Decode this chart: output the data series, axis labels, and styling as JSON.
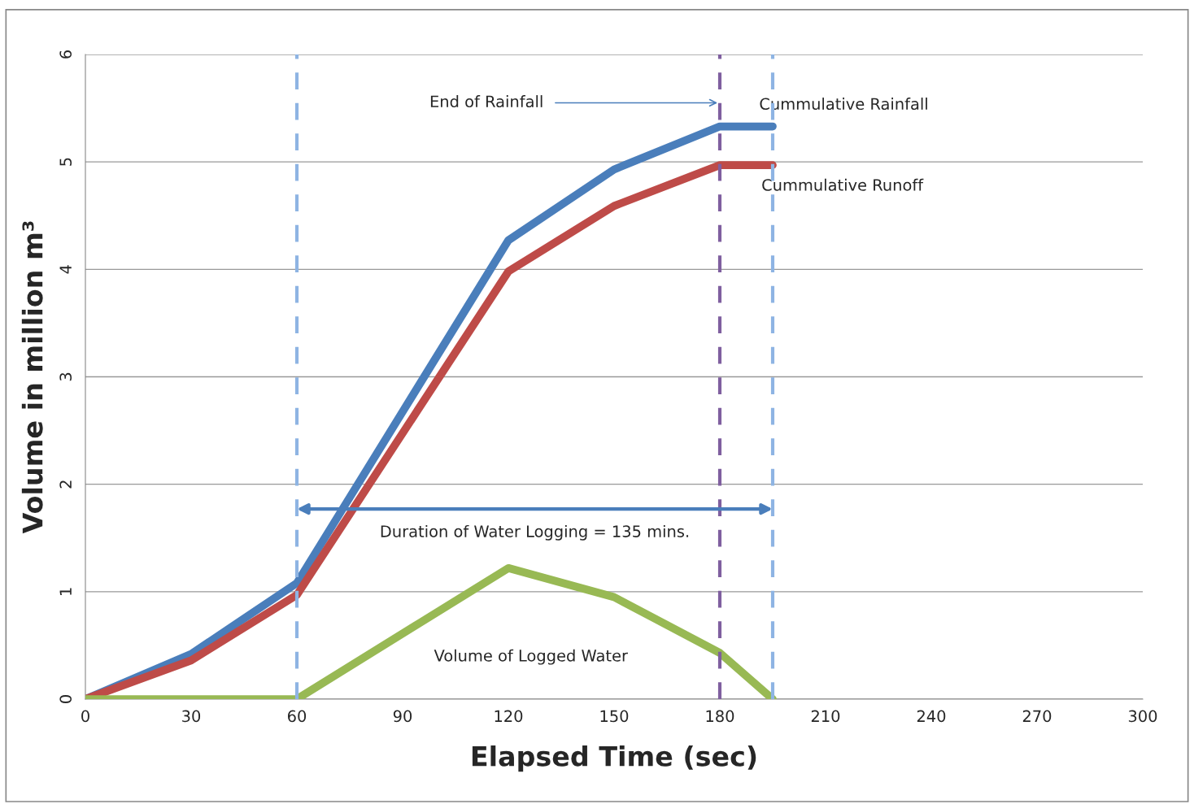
{
  "chart_data": {
    "type": "line",
    "xlabel": "Elapsed Time (sec)",
    "ylabel": "Volume in million m³",
    "xlim": [
      0,
      300
    ],
    "xticks": [
      0,
      30,
      60,
      90,
      120,
      150,
      180,
      210,
      240,
      270,
      300
    ],
    "ylim": [
      0,
      6
    ],
    "yticks": [
      0,
      1,
      2,
      3,
      4,
      5,
      6
    ],
    "grid": "y",
    "legend": false,
    "marker": "none",
    "line_style": "solid",
    "series": [
      {
        "name": "Cummulative Rainfall",
        "color": "#4a7ebb",
        "x": [
          0,
          30,
          60,
          120,
          150,
          180,
          195
        ],
        "values": [
          0,
          0.42,
          1.08,
          4.27,
          4.93,
          5.33,
          5.33
        ]
      },
      {
        "name": "Cummulative Runoff",
        "color": "#be4b48",
        "x": [
          0,
          30,
          60,
          120,
          150,
          180,
          195
        ],
        "values": [
          0,
          0.36,
          0.97,
          3.98,
          4.59,
          4.97,
          4.97
        ]
      },
      {
        "name": "Volume of Logged Water",
        "color": "#98b954",
        "x": [
          0,
          60,
          120,
          150,
          180,
          195
        ],
        "values": [
          0,
          0,
          1.22,
          0.95,
          0.43,
          0
        ]
      }
    ],
    "ref_lines": [
      {
        "axis": "x",
        "value": 60,
        "color": "#8eb4e3",
        "line_style": "dashed"
      },
      {
        "axis": "x",
        "value": 180,
        "color": "#7f5f9f",
        "line_style": "dashed"
      },
      {
        "axis": "x",
        "value": 195,
        "color": "#8eb4e3",
        "line_style": "dashed"
      }
    ],
    "annotations": [
      {
        "text": "End of Rainfall",
        "x": 180,
        "y": 5.55
      },
      "Duration of Water Logging = 135 mins."
    ]
  }
}
